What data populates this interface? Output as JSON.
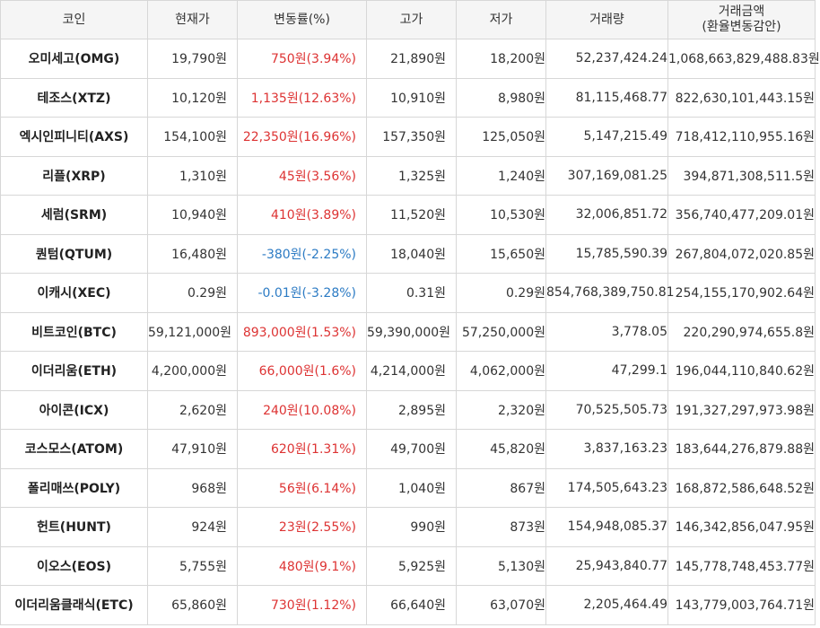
{
  "columns": [
    "코인",
    "현재가",
    "변동률(%)",
    "고가",
    "저가",
    "거래량",
    "거래금액\n(환율변동감안)"
  ],
  "rows": [
    {
      "name": "오미세고(OMG)",
      "price": "19,790원",
      "change": "750원(3.94%)",
      "dir": "up",
      "high": "21,890원",
      "low": "18,200원",
      "volume": "52,237,424.24",
      "amount": "1,068,663,829,488.83원"
    },
    {
      "name": "테조스(XTZ)",
      "price": "10,120원",
      "change": "1,135원(12.63%)",
      "dir": "up",
      "high": "10,910원",
      "low": "8,980원",
      "volume": "81,115,468.77",
      "amount": "822,630,101,443.15원"
    },
    {
      "name": "엑시인피니티(AXS)",
      "price": "154,100원",
      "change": "22,350원(16.96%)",
      "dir": "up",
      "high": "157,350원",
      "low": "125,050원",
      "volume": "5,147,215.49",
      "amount": "718,412,110,955.16원"
    },
    {
      "name": "리플(XRP)",
      "price": "1,310원",
      "change": "45원(3.56%)",
      "dir": "up",
      "high": "1,325원",
      "low": "1,240원",
      "volume": "307,169,081.25",
      "amount": "394,871,308,511.5원"
    },
    {
      "name": "세럼(SRM)",
      "price": "10,940원",
      "change": "410원(3.89%)",
      "dir": "up",
      "high": "11,520원",
      "low": "10,530원",
      "volume": "32,006,851.72",
      "amount": "356,740,477,209.01원"
    },
    {
      "name": "퀀텀(QTUM)",
      "price": "16,480원",
      "change": "-380원(-2.25%)",
      "dir": "down",
      "high": "18,040원",
      "low": "15,650원",
      "volume": "15,785,590.39",
      "amount": "267,804,072,020.85원"
    },
    {
      "name": "이캐시(XEC)",
      "price": "0.29원",
      "change": "-0.01원(-3.28%)",
      "dir": "down",
      "high": "0.31원",
      "low": "0.29원",
      "volume": "854,768,389,750.81",
      "amount": "254,155,170,902.64원"
    },
    {
      "name": "비트코인(BTC)",
      "price": "59,121,000원",
      "change": "893,000원(1.53%)",
      "dir": "up",
      "high": "59,390,000원",
      "low": "57,250,000원",
      "volume": "3,778.05",
      "amount": "220,290,974,655.8원"
    },
    {
      "name": "이더리움(ETH)",
      "price": "4,200,000원",
      "change": "66,000원(1.6%)",
      "dir": "up",
      "high": "4,214,000원",
      "low": "4,062,000원",
      "volume": "47,299.1",
      "amount": "196,044,110,840.62원"
    },
    {
      "name": "아이콘(ICX)",
      "price": "2,620원",
      "change": "240원(10.08%)",
      "dir": "up",
      "high": "2,895원",
      "low": "2,320원",
      "volume": "70,525,505.73",
      "amount": "191,327,297,973.98원"
    },
    {
      "name": "코스모스(ATOM)",
      "price": "47,910원",
      "change": "620원(1.31%)",
      "dir": "up",
      "high": "49,700원",
      "low": "45,820원",
      "volume": "3,837,163.23",
      "amount": "183,644,276,879.88원"
    },
    {
      "name": "폴리매쓰(POLY)",
      "price": "968원",
      "change": "56원(6.14%)",
      "dir": "up",
      "high": "1,040원",
      "low": "867원",
      "volume": "174,505,643.23",
      "amount": "168,872,586,648.52원"
    },
    {
      "name": "헌트(HUNT)",
      "price": "924원",
      "change": "23원(2.55%)",
      "dir": "up",
      "high": "990원",
      "low": "873원",
      "volume": "154,948,085.37",
      "amount": "146,342,856,047.95원"
    },
    {
      "name": "이오스(EOS)",
      "price": "5,755원",
      "change": "480원(9.1%)",
      "dir": "up",
      "high": "5,925원",
      "low": "5,130원",
      "volume": "25,943,840.77",
      "amount": "145,778,748,453.77원"
    },
    {
      "name": "이더리움클래식(ETC)",
      "price": "65,860원",
      "change": "730원(1.12%)",
      "dir": "up",
      "high": "66,640원",
      "low": "63,070원",
      "volume": "2,205,464.49",
      "amount": "143,779,003,764.71원"
    }
  ],
  "colors": {
    "up": "#dd3333",
    "down": "#2c7bc4",
    "header_bg": "#f5f5f5",
    "border": "#d7d7d7"
  }
}
